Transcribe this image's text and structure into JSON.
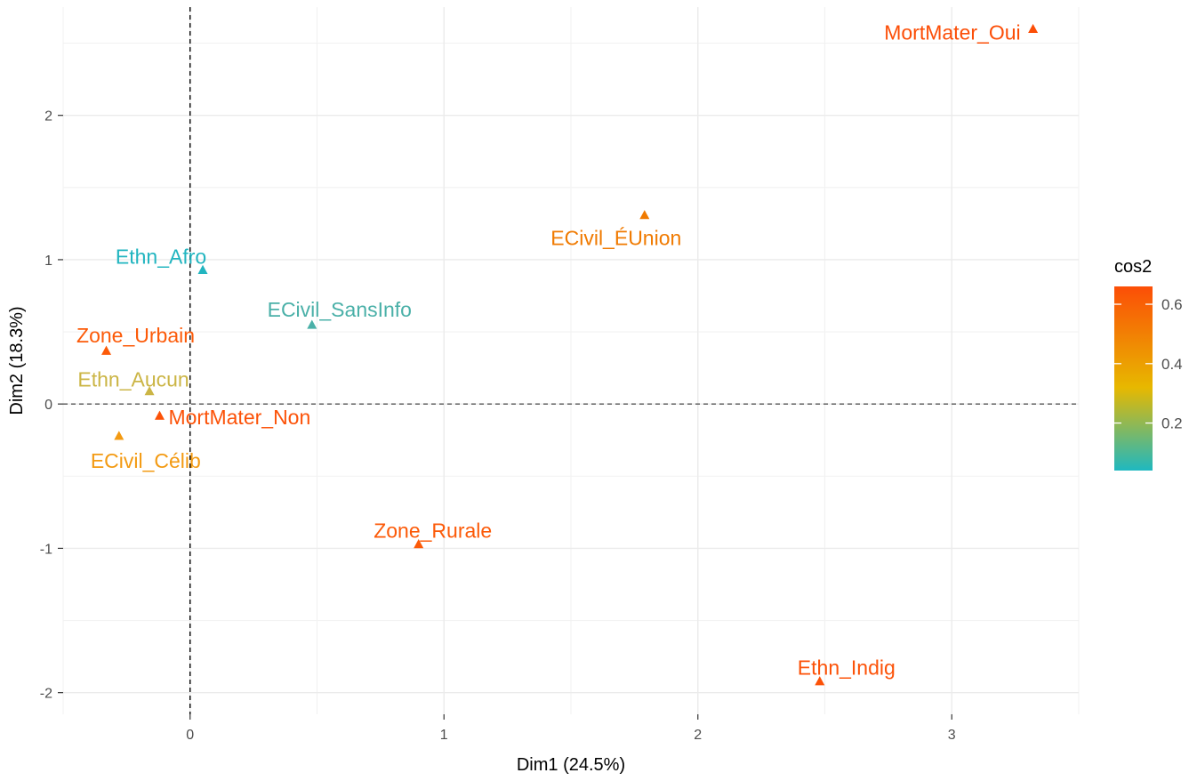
{
  "chart_data": {
    "type": "scatter",
    "title": "",
    "xlabel": "Dim1 (24.5%)",
    "ylabel": "Dim2 (18.3%)",
    "xlim": [
      -0.5,
      3.5
    ],
    "ylim": [
      -2.15,
      2.75
    ],
    "x_ticks": [
      0,
      1,
      2,
      3
    ],
    "y_ticks": [
      -2,
      -1,
      0,
      1,
      2
    ],
    "reference_lines": {
      "x": 0,
      "y": 0,
      "style": "dashed"
    },
    "grid": true,
    "marker": "triangle",
    "color_variable": "cos2",
    "color_scale": {
      "low": "#1fb8c0",
      "mid": "#e7b800",
      "high": "#fc4e07",
      "range": [
        0.04,
        0.66
      ],
      "ticks": [
        0.2,
        0.4,
        0.6
      ]
    },
    "legend": {
      "title": "cos2",
      "position": "right"
    },
    "points": [
      {
        "label": "MortMater_Oui",
        "x": 3.32,
        "y": 2.6,
        "cos2": 0.64,
        "color": "#fc4e07"
      },
      {
        "label": "ECivil_ÉUnion",
        "x": 1.79,
        "y": 1.31,
        "cos2": 0.5,
        "color": "#f07a00"
      },
      {
        "label": "Ethn_Afro",
        "x": 0.05,
        "y": 0.93,
        "cos2": 0.05,
        "color": "#22b5c0"
      },
      {
        "label": "ECivil_SansInfo",
        "x": 0.48,
        "y": 0.55,
        "cos2": 0.12,
        "color": "#4ab0a8"
      },
      {
        "label": "Zone_Urbain",
        "x": -0.33,
        "y": 0.37,
        "cos2": 0.62,
        "color": "#fc5a08"
      },
      {
        "label": "Ethn_Aucun",
        "x": -0.16,
        "y": 0.09,
        "cos2": 0.27,
        "color": "#cbb545"
      },
      {
        "label": "MortMater_Non",
        "x": -0.12,
        "y": -0.08,
        "cos2": 0.63,
        "color": "#fc5208"
      },
      {
        "label": "ECivil_Célib",
        "x": -0.28,
        "y": -0.22,
        "cos2": 0.5,
        "color": "#f39a12"
      },
      {
        "label": "Zone_Rurale",
        "x": 0.9,
        "y": -0.97,
        "cos2": 0.62,
        "color": "#fc5a08"
      },
      {
        "label": "Ethn_Indig",
        "x": 2.48,
        "y": -1.92,
        "cos2": 0.63,
        "color": "#fc5208"
      }
    ]
  }
}
